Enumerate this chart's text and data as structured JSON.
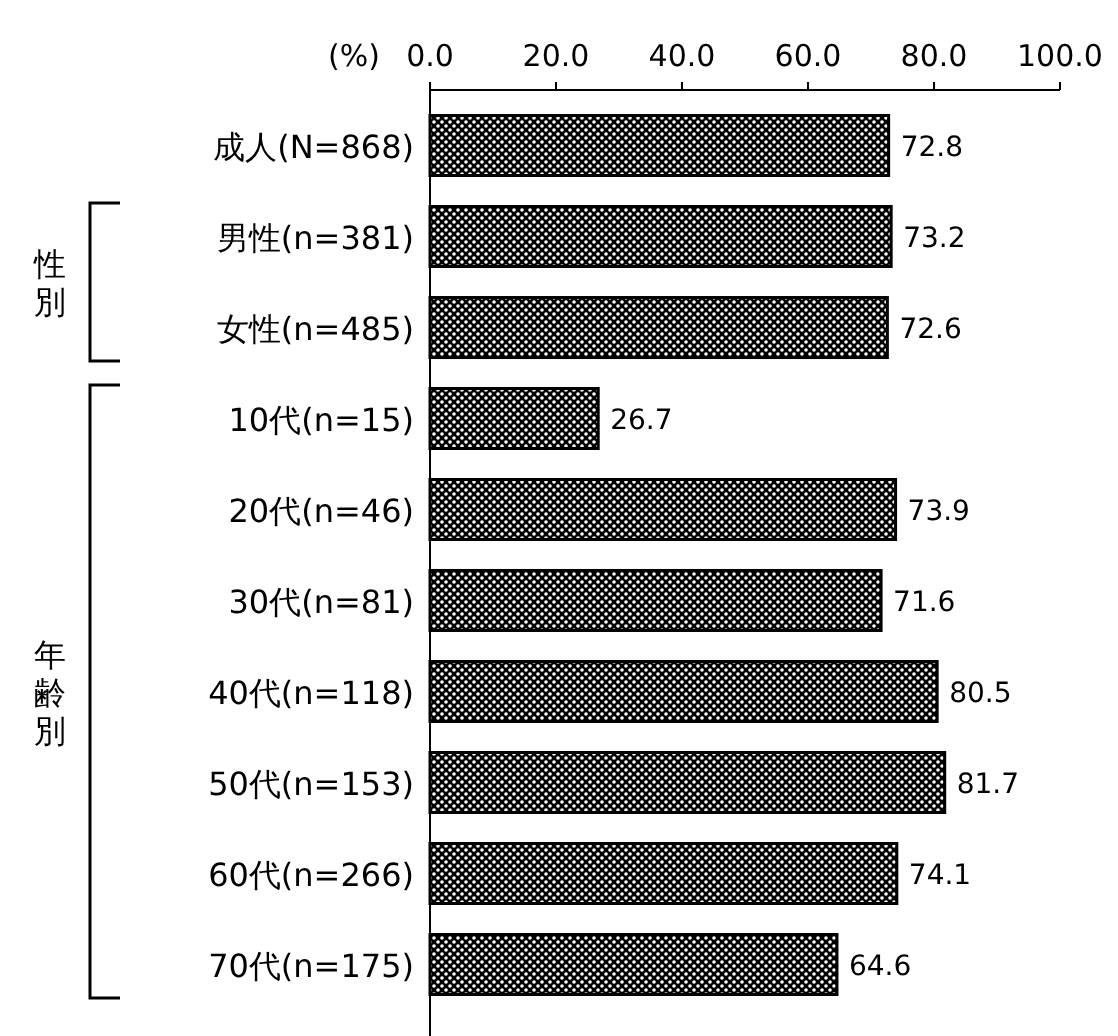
{
  "chart_data": {
    "type": "bar",
    "orientation": "horizontal",
    "xlabel": "(%)",
    "categories": [
      "成人(N=868)",
      "男性(n=381)",
      "女性(n=485)",
      "10代(n=15)",
      "20代(n=46)",
      "30代(n=81)",
      "40代(n=118)",
      "50代(n=153)",
      "60代(n=266)",
      "70代(n=175)"
    ],
    "values": [
      72.8,
      73.2,
      72.6,
      26.7,
      73.9,
      71.6,
      80.5,
      81.7,
      74.1,
      64.6
    ],
    "color": "#000000",
    "xlim": [
      0,
      100
    ],
    "xticks": [
      {
        "value": 0,
        "label": "0.0"
      },
      {
        "value": 20,
        "label": "20.0"
      },
      {
        "value": 40,
        "label": "40.0"
      },
      {
        "value": 60,
        "label": "60.0"
      },
      {
        "value": 80,
        "label": "80.0"
      },
      {
        "value": 100,
        "label": "100.0"
      }
    ],
    "data_labels": true,
    "annotations": [
      "性別",
      "年齢別"
    ]
  }
}
